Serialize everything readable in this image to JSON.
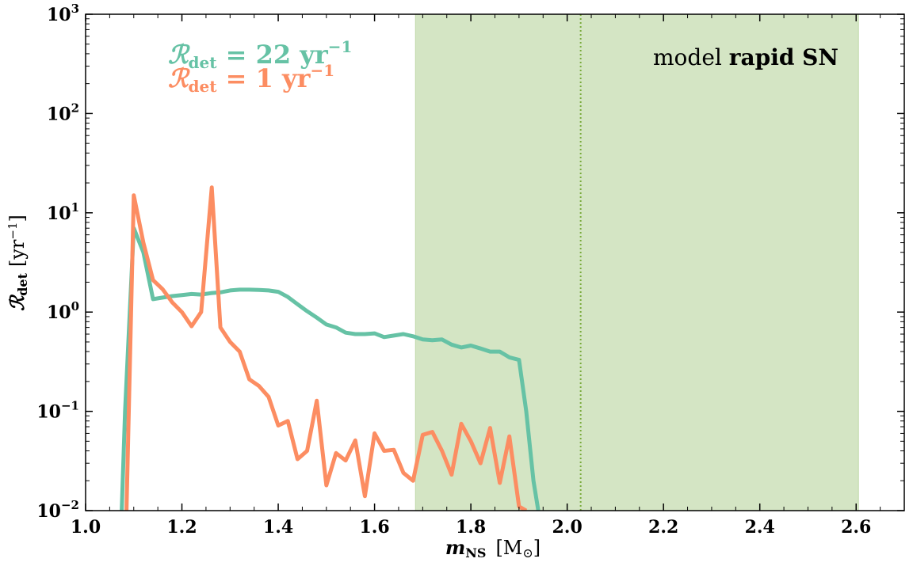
{
  "chart_data": {
    "type": "line",
    "xlabel_main": "m",
    "xlabel_sub": "NS",
    "xlabel_unit": "[M",
    "xlabel_unit_sub": "⊙",
    "xlabel_unit_close": "]",
    "ylabel_main": "ℛ",
    "ylabel_sub": "det",
    "ylabel_unit": "[yr",
    "ylabel_unit_sup": "−1",
    "ylabel_unit_close": "]",
    "xlim": [
      1.0,
      2.7
    ],
    "ylim": [
      0.01,
      1000
    ],
    "yscale": "log",
    "xticks": [
      "1.0",
      "1.2",
      "1.4",
      "1.6",
      "1.8",
      "2.0",
      "2.2",
      "2.4",
      "2.6"
    ],
    "yticks": [
      {
        "base": "10",
        "exp": "−2"
      },
      {
        "base": "10",
        "exp": "−1"
      },
      {
        "base": "10",
        "exp": "0"
      },
      {
        "base": "10",
        "exp": "1"
      },
      {
        "base": "10",
        "exp": "2"
      },
      {
        "base": "10",
        "exp": "3"
      }
    ],
    "shaded_region": {
      "x": [
        1.685,
        2.605
      ],
      "color": "#a9cc8a"
    },
    "vline": {
      "x": 2.028,
      "color": "#7aaa3c",
      "style": "dotted"
    },
    "annotation": {
      "prefix": "model ",
      "bold": "rapid SN"
    },
    "legend_placement": "top-left",
    "series": [
      {
        "name": "ℛdet = 22 yr−1",
        "legend_prefix": "ℛ",
        "legend_sub": "det",
        "legend_mid": " = 22 yr",
        "legend_sup": "−1",
        "color": "#66c2a5",
        "x": [
          1.075,
          1.082,
          1.1,
          1.12,
          1.14,
          1.16,
          1.18,
          1.2,
          1.22,
          1.24,
          1.26,
          1.28,
          1.3,
          1.32,
          1.34,
          1.36,
          1.38,
          1.4,
          1.42,
          1.44,
          1.46,
          1.48,
          1.5,
          1.52,
          1.54,
          1.56,
          1.58,
          1.6,
          1.62,
          1.64,
          1.66,
          1.68,
          1.7,
          1.72,
          1.74,
          1.76,
          1.78,
          1.8,
          1.82,
          1.84,
          1.86,
          1.88,
          1.9,
          1.915,
          1.93,
          1.94
        ],
        "y": [
          0.01,
          0.1,
          7.0,
          4.0,
          1.35,
          1.4,
          1.45,
          1.48,
          1.52,
          1.5,
          1.55,
          1.58,
          1.65,
          1.68,
          1.68,
          1.67,
          1.65,
          1.6,
          1.42,
          1.2,
          1.02,
          0.88,
          0.75,
          0.7,
          0.62,
          0.6,
          0.6,
          0.61,
          0.56,
          0.58,
          0.6,
          0.57,
          0.53,
          0.52,
          0.53,
          0.47,
          0.44,
          0.46,
          0.43,
          0.4,
          0.4,
          0.35,
          0.33,
          0.1,
          0.02,
          0.01
        ]
      },
      {
        "name": "ℛdet = 1 yr−1",
        "legend_prefix": "ℛ",
        "legend_sub": "det",
        "legend_mid": " = 1 yr",
        "legend_sup": "−1",
        "color": "#fc8d62",
        "x": [
          1.085,
          1.1,
          1.12,
          1.14,
          1.16,
          1.18,
          1.2,
          1.22,
          1.24,
          1.262,
          1.28,
          1.3,
          1.32,
          1.34,
          1.36,
          1.38,
          1.4,
          1.42,
          1.44,
          1.46,
          1.48,
          1.5,
          1.52,
          1.54,
          1.56,
          1.58,
          1.6,
          1.62,
          1.64,
          1.66,
          1.68,
          1.7,
          1.72,
          1.74,
          1.76,
          1.78,
          1.8,
          1.82,
          1.84,
          1.86,
          1.88,
          1.9,
          1.915
        ],
        "y": [
          0.01,
          15.0,
          5.0,
          2.1,
          1.7,
          1.25,
          1.0,
          0.72,
          1.0,
          18.0,
          0.7,
          0.5,
          0.4,
          0.21,
          0.18,
          0.14,
          0.072,
          0.08,
          0.033,
          0.04,
          0.128,
          0.018,
          0.038,
          0.032,
          0.051,
          0.014,
          0.06,
          0.04,
          0.041,
          0.024,
          0.02,
          0.058,
          0.062,
          0.04,
          0.023,
          0.075,
          0.05,
          0.03,
          0.068,
          0.019,
          0.056,
          0.011,
          0.01
        ]
      }
    ]
  }
}
